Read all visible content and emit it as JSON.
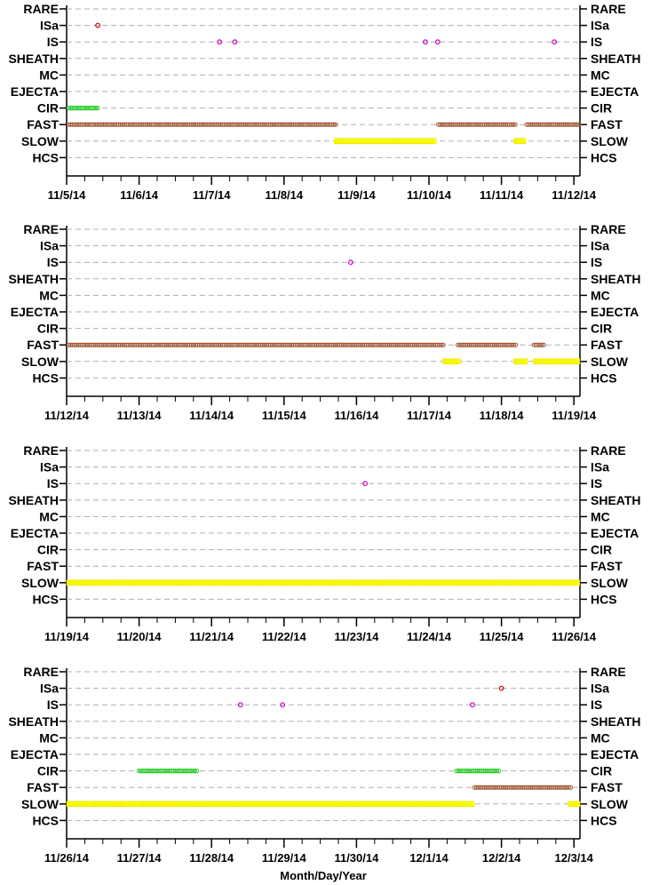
{
  "colors": {
    "grid": "#b0b0b0",
    "ISa": "#cc0000",
    "IS": "#cc00cc",
    "CIR": "#22cc22",
    "FAST": "#a0522d",
    "SLOW": "#ffff00",
    "SLOW_edge": "#e0e000"
  },
  "x_axis_label": "Month/Day/Year",
  "chart_data": [
    {
      "type": "scatter",
      "categories": [
        "RARE",
        "ISa",
        "IS",
        "SHEATH",
        "MC",
        "EJECTA",
        "CIR",
        "FAST",
        "SLOW",
        "HCS"
      ],
      "xticks": [
        "11/5/14",
        "11/6/14",
        "11/7/14",
        "11/8/14",
        "11/9/14",
        "11/10/14",
        "11/11/14",
        "11/12/14"
      ],
      "xlim": [
        0,
        7.1
      ],
      "grid": true,
      "points": {
        "ISa": [
          0.43
        ],
        "IS": [
          2.11,
          2.32,
          4.95,
          5.12,
          6.73
        ]
      },
      "runs": {
        "CIR": [
          [
            0.03,
            0.43
          ]
        ],
        "FAST": [
          [
            0.03,
            3.72
          ],
          [
            5.13,
            6.2
          ],
          [
            6.35,
            7.07
          ]
        ],
        "SLOW": [
          [
            3.72,
            5.08
          ],
          [
            6.2,
            6.33
          ]
        ]
      }
    },
    {
      "type": "scatter",
      "categories": [
        "RARE",
        "ISa",
        "IS",
        "SHEATH",
        "MC",
        "EJECTA",
        "CIR",
        "FAST",
        "SLOW",
        "HCS"
      ],
      "xticks": [
        "11/12/14",
        "11/13/14",
        "11/14/14",
        "11/15/14",
        "11/16/14",
        "11/17/14",
        "11/18/14",
        "11/19/14"
      ],
      "xlim": [
        0,
        7.1
      ],
      "grid": true,
      "points": {
        "IS": [
          3.92
        ]
      },
      "runs": {
        "FAST": [
          [
            0.03,
            5.2
          ],
          [
            5.4,
            6.2
          ],
          [
            6.45,
            6.6
          ]
        ],
        "SLOW": [
          [
            5.22,
            5.42
          ],
          [
            6.2,
            6.35
          ],
          [
            6.47,
            7.07
          ]
        ]
      }
    },
    {
      "type": "scatter",
      "categories": [
        "RARE",
        "ISa",
        "IS",
        "SHEATH",
        "MC",
        "EJECTA",
        "CIR",
        "FAST",
        "SLOW",
        "HCS"
      ],
      "xticks": [
        "11/19/14",
        "11/20/14",
        "11/21/14",
        "11/22/14",
        "11/23/14",
        "11/24/14",
        "11/25/14",
        "11/26/14"
      ],
      "xlim": [
        0,
        7.1
      ],
      "grid": true,
      "points": {
        "IS": [
          4.12
        ]
      },
      "runs": {
        "SLOW": [
          [
            0.03,
            7.07
          ]
        ]
      }
    },
    {
      "type": "scatter",
      "categories": [
        "RARE",
        "ISa",
        "IS",
        "SHEATH",
        "MC",
        "EJECTA",
        "CIR",
        "FAST",
        "SLOW",
        "HCS"
      ],
      "xticks": [
        "11/26/14",
        "11/27/14",
        "11/28/14",
        "11/29/14",
        "11/30/14",
        "12/1/14",
        "12/2/14",
        "12/3/14"
      ],
      "xlim": [
        0,
        7.1
      ],
      "grid": true,
      "points": {
        "ISa": [
          6.0
        ],
        "IS": [
          2.4,
          2.98,
          5.6
        ]
      },
      "runs": {
        "CIR": [
          [
            1.0,
            1.8
          ],
          [
            5.38,
            5.98
          ]
        ],
        "FAST": [
          [
            5.63,
            6.97
          ]
        ],
        "SLOW": [
          [
            0.03,
            5.6
          ],
          [
            6.95,
            7.07
          ]
        ]
      }
    }
  ]
}
